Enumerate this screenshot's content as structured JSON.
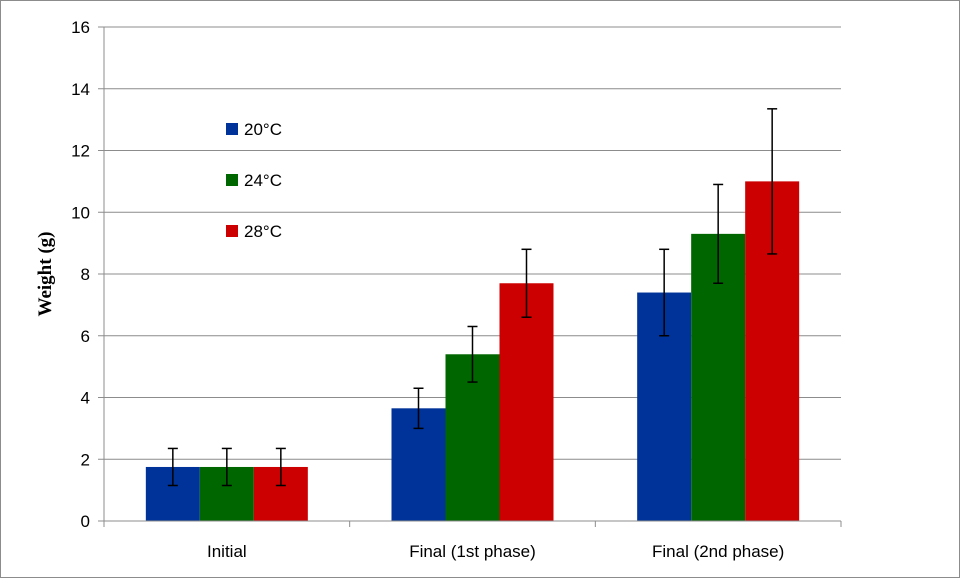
{
  "chart_data": {
    "type": "bar",
    "title": "",
    "xlabel": "",
    "ylabel": "Weight (g)",
    "ylim": [
      0,
      16
    ],
    "yticks": [
      0,
      2,
      4,
      6,
      8,
      10,
      12,
      14,
      16
    ],
    "grid": true,
    "legend_position": "top-left",
    "categories": [
      "Initial",
      "Final (1st phase)",
      "Final (2nd phase)"
    ],
    "series": [
      {
        "name": "20°C",
        "color": "#003399",
        "values": [
          1.75,
          3.65,
          7.4
        ],
        "errors": [
          0.6,
          0.65,
          1.4
        ]
      },
      {
        "name": "24°C",
        "color": "#006600",
        "values": [
          1.75,
          5.4,
          9.3
        ],
        "errors": [
          0.6,
          0.9,
          1.6
        ]
      },
      {
        "name": "28°C",
        "color": "#CC0000",
        "values": [
          1.75,
          7.7,
          11.0
        ],
        "errors": [
          0.6,
          1.1,
          2.35
        ]
      }
    ]
  }
}
